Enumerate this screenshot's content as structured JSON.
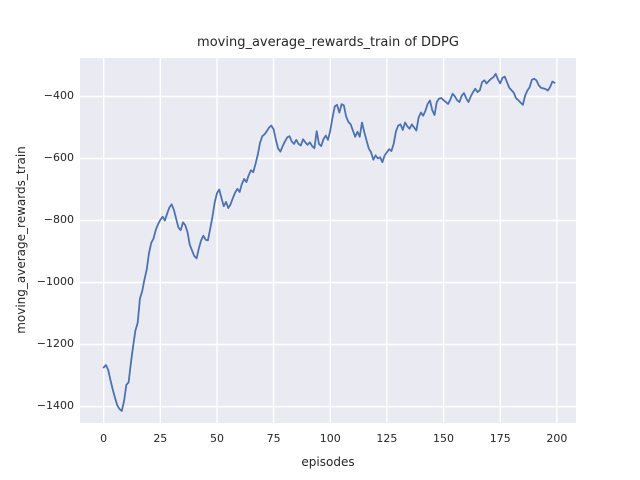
{
  "chart_data": {
    "type": "line",
    "title": "moving_average_rewards_train of DDPG",
    "xlabel": "episodes",
    "ylabel": "moving_average_rewards_train",
    "grid": true,
    "legend": false,
    "xticks": [
      0,
      25,
      50,
      75,
      100,
      125,
      150,
      175,
      200
    ],
    "yticks": [
      -400,
      -600,
      -800,
      -1000,
      -1200,
      -1400
    ],
    "xlim": [
      -10.45,
      208.45
    ],
    "ylim": [
      -1453,
      -276
    ],
    "style": {
      "plot_bg": "#eaeaf2",
      "grid_color": "#ffffff",
      "fig_bg": "#ffffff",
      "text_color": "#262626",
      "line_color": "#4c72b0",
      "line_width": 1.8
    },
    "series": [
      {
        "name": "moving_average_rewards_train",
        "color": "#4c72b0",
        "x_start": 0,
        "x_step": 1,
        "values": [
          -1274,
          -1266,
          -1282,
          -1315,
          -1345,
          -1372,
          -1396,
          -1408,
          -1414,
          -1382,
          -1330,
          -1322,
          -1260,
          -1205,
          -1155,
          -1130,
          -1052,
          -1028,
          -990,
          -958,
          -905,
          -872,
          -858,
          -830,
          -812,
          -798,
          -788,
          -800,
          -778,
          -758,
          -748,
          -766,
          -795,
          -823,
          -831,
          -806,
          -815,
          -838,
          -878,
          -897,
          -915,
          -922,
          -890,
          -864,
          -849,
          -862,
          -864,
          -827,
          -788,
          -742,
          -712,
          -700,
          -728,
          -754,
          -740,
          -760,
          -748,
          -728,
          -710,
          -698,
          -708,
          -682,
          -666,
          -676,
          -654,
          -638,
          -644,
          -618,
          -588,
          -550,
          -528,
          -522,
          -512,
          -500,
          -494,
          -506,
          -540,
          -568,
          -578,
          -560,
          -545,
          -532,
          -528,
          -545,
          -553,
          -540,
          -553,
          -558,
          -538,
          -548,
          -556,
          -548,
          -560,
          -567,
          -512,
          -553,
          -560,
          -538,
          -526,
          -540,
          -510,
          -468,
          -432,
          -427,
          -452,
          -425,
          -429,
          -465,
          -482,
          -490,
          -510,
          -530,
          -514,
          -530,
          -484,
          -514,
          -542,
          -568,
          -580,
          -604,
          -590,
          -600,
          -596,
          -612,
          -590,
          -580,
          -570,
          -576,
          -552,
          -512,
          -494,
          -490,
          -508,
          -484,
          -496,
          -504,
          -490,
          -500,
          -510,
          -468,
          -452,
          -462,
          -446,
          -424,
          -413,
          -444,
          -460,
          -418,
          -407,
          -405,
          -412,
          -418,
          -424,
          -410,
          -391,
          -400,
          -412,
          -418,
          -398,
          -389,
          -406,
          -418,
          -400,
          -386,
          -375,
          -386,
          -380,
          -354,
          -348,
          -358,
          -350,
          -343,
          -338,
          -327,
          -345,
          -358,
          -340,
          -336,
          -354,
          -372,
          -380,
          -388,
          -406,
          -412,
          -420,
          -427,
          -397,
          -381,
          -370,
          -346,
          -343,
          -348,
          -364,
          -372,
          -374,
          -376,
          -381,
          -370,
          -352,
          -356
        ]
      }
    ]
  }
}
